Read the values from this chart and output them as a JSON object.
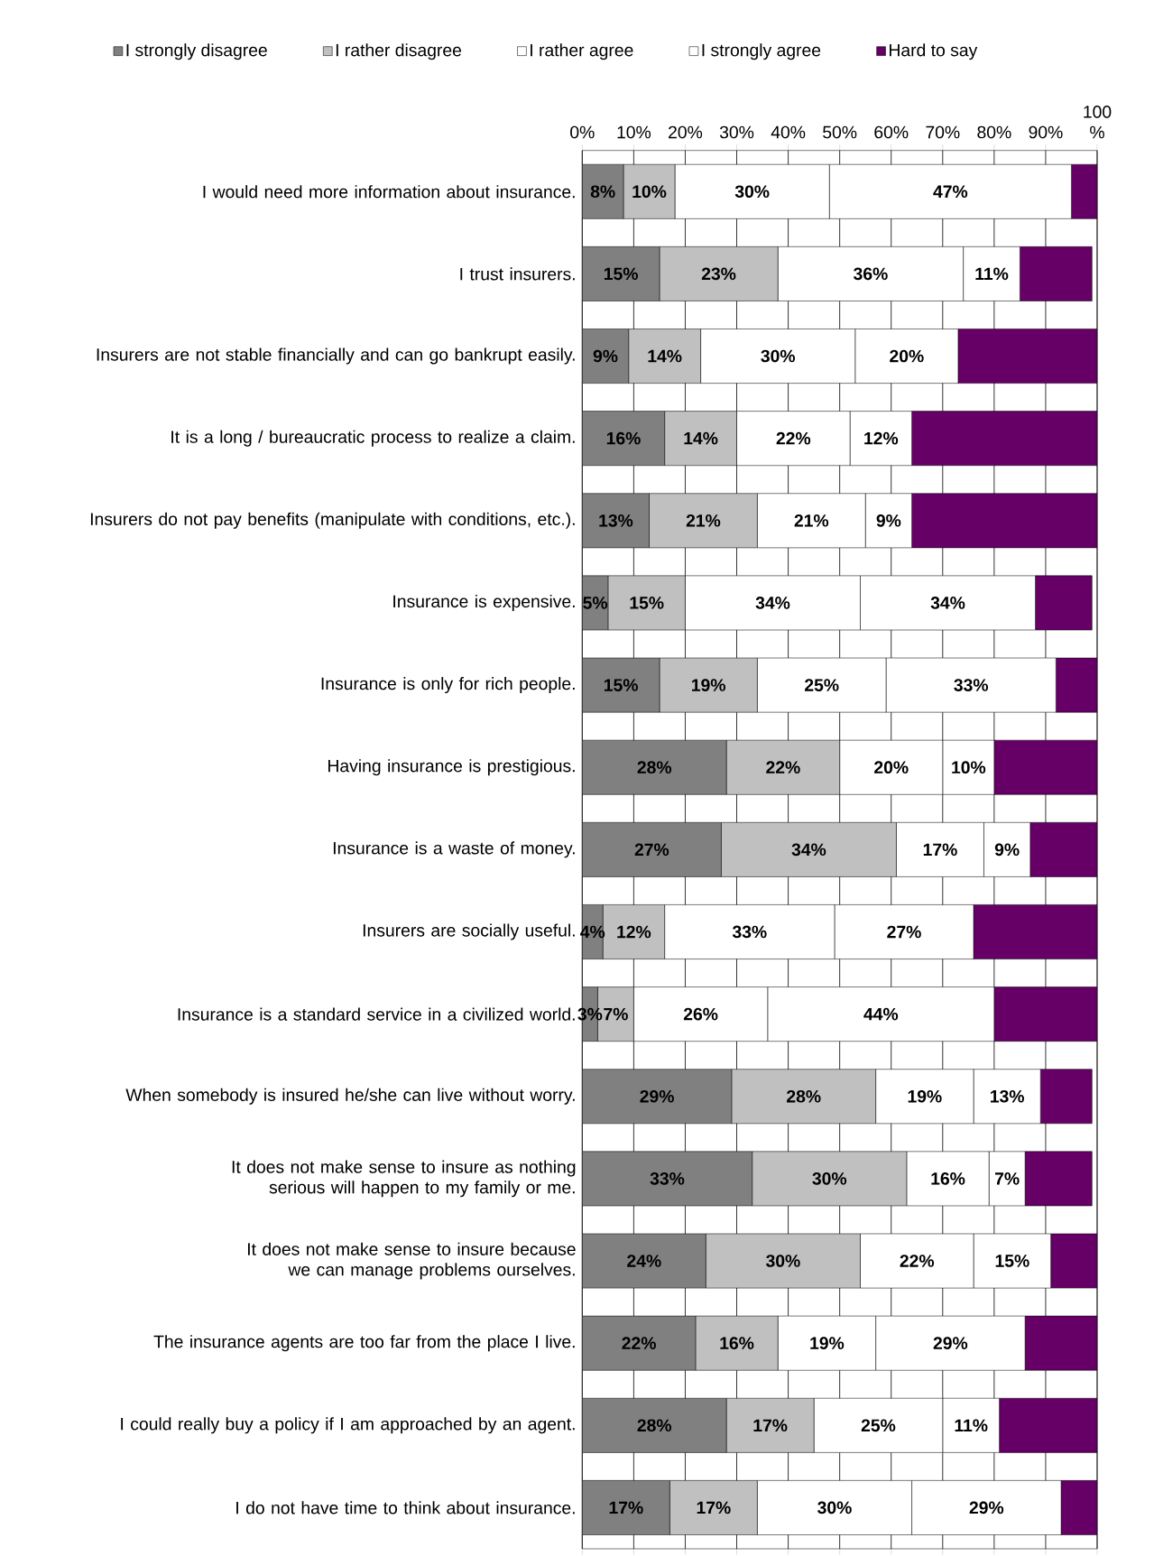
{
  "chart_data": {
    "type": "bar",
    "orientation": "horizontal",
    "stacked": true,
    "legend": "top",
    "grid": "x",
    "categories": [
      "I would need more information about insurance.",
      "I trust insurers.",
      "Insurers are not stable financially and can go bankrupt easily.",
      "It is a long / bureaucratic process to realize a claim.",
      "Insurers do not pay benefits (manipulate with conditions, etc.).",
      "Insurance is expensive.",
      "Insurance is only for rich people.",
      "Having insurance is prestigious.",
      "Insurance is a waste of money.",
      "Insurers are socially useful.",
      "Insurance is a standard service in a civilized world.",
      "When somebody is insured he/she can live without worry.",
      "It does not make sense to insure as nothing serious will happen to my family or me.",
      "It does not make sense to insure because we can manage problems ourselves.",
      "The insurance agents are too far from the place I live.",
      "I could really buy a policy if I am approached by an agent.",
      "I do not have time to think about insurance."
    ],
    "xlim": [
      0,
      100
    ],
    "xticks": [
      {
        "value": 0,
        "label": "0%"
      },
      {
        "value": 10,
        "label": "10%"
      },
      {
        "value": 20,
        "label": "20%"
      },
      {
        "value": 30,
        "label": "30%"
      },
      {
        "value": 40,
        "label": "40%"
      },
      {
        "value": 50,
        "label": "50%"
      },
      {
        "value": 60,
        "label": "60%"
      },
      {
        "value": 70,
        "label": "70%"
      },
      {
        "value": 80,
        "label": "80%"
      },
      {
        "value": 90,
        "label": "90%"
      },
      {
        "value": 100,
        "label": "100 %"
      }
    ],
    "series": [
      {
        "name": "I strongly disagree",
        "color": "#808080",
        "values": [
          8,
          15,
          9,
          16,
          13,
          5,
          15,
          28,
          27,
          4,
          3,
          29,
          33,
          24,
          22,
          28,
          17
        ],
        "value_labels": [
          "8%",
          "15%",
          "9%",
          "16%",
          "13%",
          "5%",
          "15%",
          "28%",
          "27%",
          "4%",
          "3%",
          "29%",
          "33%",
          "24%",
          "22%",
          "28%",
          "17%"
        ]
      },
      {
        "name": "I rather disagree",
        "color": "#c0c0c0",
        "values": [
          10,
          23,
          14,
          14,
          21,
          15,
          19,
          22,
          34,
          12,
          7,
          28,
          30,
          30,
          16,
          17,
          17
        ],
        "value_labels": [
          "10%",
          "23%",
          "14%",
          "14%",
          "21%",
          "15%",
          "19%",
          "22%",
          "34%",
          "12%",
          "7%",
          "28%",
          "30%",
          "30%",
          "16%",
          "17%",
          "17%"
        ]
      },
      {
        "name": "I rather agree",
        "color": "#ffffff",
        "values": [
          30,
          36,
          30,
          22,
          21,
          34,
          25,
          20,
          17,
          33,
          26,
          19,
          16,
          22,
          19,
          25,
          30
        ],
        "value_labels": [
          "30%",
          "36%",
          "30%",
          "22%",
          "21%",
          "34%",
          "25%",
          "20%",
          "17%",
          "33%",
          "26%",
          "19%",
          "16%",
          "22%",
          "19%",
          "25%",
          "30%"
        ]
      },
      {
        "name": "I strongly agree",
        "color": "#ffffff",
        "values": [
          47,
          11,
          20,
          12,
          9,
          34,
          33,
          10,
          9,
          27,
          44,
          13,
          7,
          15,
          29,
          11,
          29
        ],
        "value_labels": [
          "47%",
          "11%",
          "20%",
          "12%",
          "9%",
          "34%",
          "33%",
          "10%",
          "9%",
          "27%",
          "44%",
          "13%",
          "7%",
          "15%",
          "29%",
          "11%",
          "29%"
        ]
      },
      {
        "name": "Hard to say",
        "color": "#660066",
        "values": [
          5,
          14,
          27,
          36,
          36,
          11,
          8,
          20,
          13,
          24,
          20,
          10,
          13,
          9,
          14,
          19,
          7
        ]
      }
    ]
  }
}
